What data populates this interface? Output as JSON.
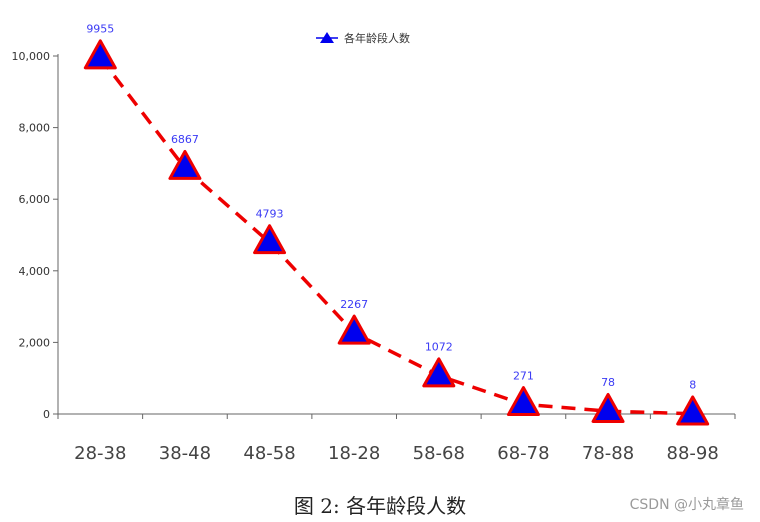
{
  "chart_data": {
    "type": "line",
    "categories": [
      "28-38",
      "38-48",
      "48-58",
      "18-28",
      "58-68",
      "68-78",
      "78-88",
      "88-98"
    ],
    "series": [
      {
        "name": "各年龄段人数",
        "values": [
          9955,
          6867,
          4793,
          2267,
          1072,
          271,
          78,
          8
        ]
      }
    ],
    "ylim": [
      0,
      10000
    ],
    "yticks": [
      0,
      2000,
      4000,
      6000,
      8000,
      10000
    ],
    "ytick_labels": [
      "0",
      "2,000",
      "4,000",
      "6,000",
      "8,000",
      "10,000"
    ],
    "legend_position": "top-center",
    "grid": false,
    "line_style": "dashed",
    "colors": {
      "line": "#ee0000",
      "marker_fill": "#0000ee",
      "marker_stroke": "#ee0000",
      "label": "#3b3bf5",
      "axis": "#666666"
    }
  },
  "caption": "图 2: 各年龄段人数",
  "watermark": "CSDN @小丸章鱼"
}
